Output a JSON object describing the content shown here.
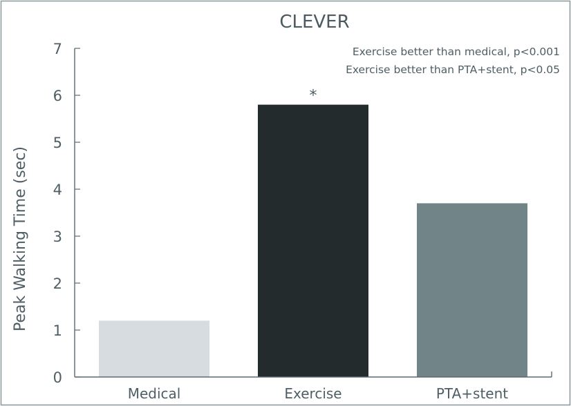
{
  "chart_data": {
    "type": "bar",
    "title": "CLEVER",
    "ylabel": "Peak Walking Time (sec)",
    "xlabel": "",
    "categories": [
      "Medical",
      "Exercise",
      "PTA+stent"
    ],
    "values": [
      1.2,
      5.8,
      3.7
    ],
    "bar_colors": [
      "#d6dcdf",
      "#232b2c",
      "#718488"
    ],
    "ylim": [
      0,
      7
    ],
    "yticks": [
      "0",
      "1",
      "2",
      "3",
      "4",
      "5",
      "6",
      "7"
    ],
    "significance_marker": "*",
    "significance_category": "Exercise",
    "annotations": [
      "Exercise better than medical, p<0.001",
      "Exercise better than PTA+stent, p<0.05"
    ],
    "grid": false,
    "legend": "none"
  }
}
